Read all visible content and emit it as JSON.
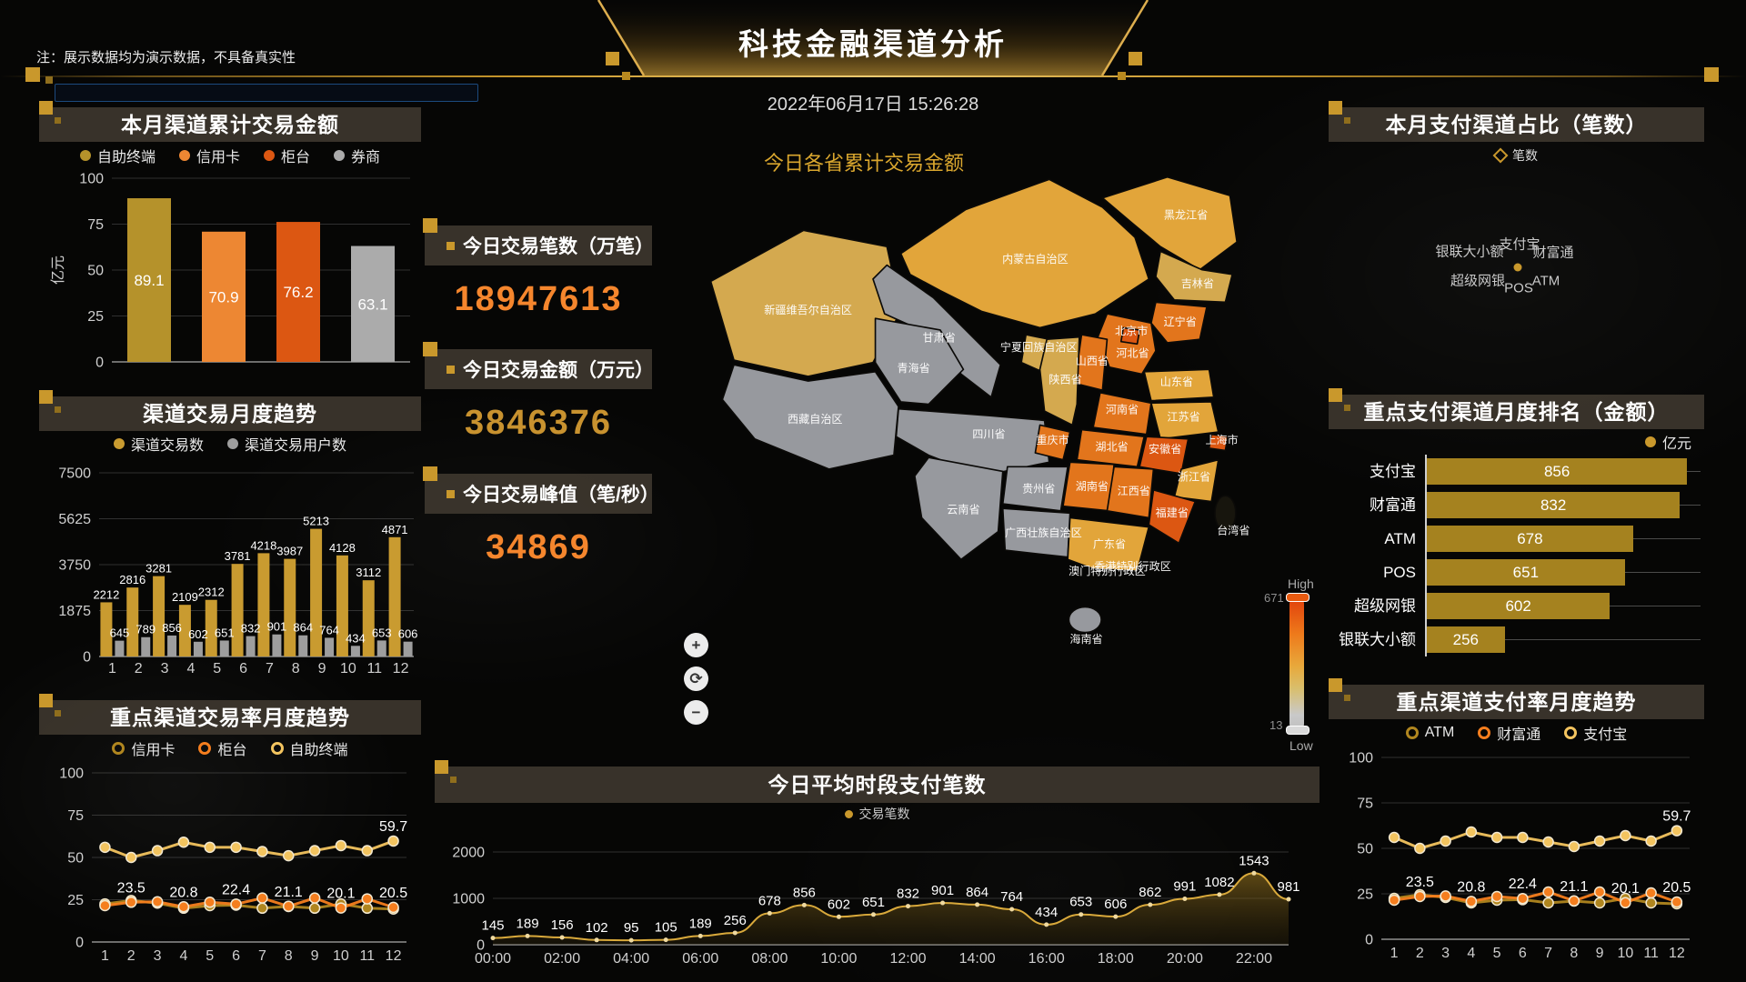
{
  "meta": {
    "title": "科技金融渠道分析",
    "datetime": "2022年06月17日 15:26:28",
    "note": "注：展示数据均为演示数据，不具备真实性",
    "search_placeholder": ""
  },
  "panels": {
    "lp1": {
      "title": "本月渠道累计交易金额",
      "legend": [
        {
          "label": "自助终端",
          "color": "#B5922B",
          "marker": "dot"
        },
        {
          "label": "信用卡",
          "color": "#ED8733",
          "marker": "dot"
        },
        {
          "label": "柜台",
          "color": "#DC5712",
          "marker": "dot"
        },
        {
          "label": "券商",
          "color": "#ABABAB",
          "marker": "dot"
        }
      ]
    },
    "lp2": {
      "title": "渠道交易月度趋势",
      "legend": [
        {
          "label": "渠道交易数",
          "color": "#C99B30",
          "marker": "dot"
        },
        {
          "label": "渠道交易用户数",
          "color": "#9E9E9E",
          "marker": "dot"
        }
      ]
    },
    "lp3": {
      "title": "重点渠道交易率月度趋势",
      "legend": [
        {
          "label": "信用卡",
          "color": "#B0861F",
          "marker": "ring"
        },
        {
          "label": "柜台",
          "color": "#F57E1E",
          "marker": "ring"
        },
        {
          "label": "自助终端",
          "color": "#F3C45F",
          "marker": "ring"
        }
      ]
    },
    "map": {
      "title": "今日各省累计交易金额",
      "controls": {
        "zoom_in": "+",
        "refresh": "⟳",
        "zoom_out": "−"
      }
    },
    "stats": [
      {
        "label": "今日交易笔数（万笔）",
        "value": "18947613",
        "color": "#F5862D"
      },
      {
        "label": "今日交易金额（万元）",
        "value": "3846376",
        "color": "#C8922F"
      },
      {
        "label": "今日交易峰值（笔/秒）",
        "value": "34869",
        "color": "#F5862D"
      }
    ],
    "bottom": {
      "title": "今日平均时段支付笔数",
      "legend": [
        {
          "label": "交易笔数",
          "color": "#C9982C",
          "marker": "dot"
        }
      ]
    },
    "rp1": {
      "title": "本月支付渠道占比（笔数）",
      "legend": [
        {
          "label": "笔数",
          "color": "#C9982C",
          "marker": "diamond"
        }
      ]
    },
    "rp2": {
      "title": "重点支付渠道月度排名（金额）",
      "legend": [
        {
          "label": "亿元",
          "color": "#C9982C",
          "marker": "dot"
        }
      ]
    },
    "rp3": {
      "title": "重点渠道支付率月度趋势",
      "legend": [
        {
          "label": "ATM",
          "color": "#B0861F",
          "marker": "ring"
        },
        {
          "label": "财富通",
          "color": "#F57E1E",
          "marker": "ring"
        },
        {
          "label": "支付宝",
          "color": "#F3C45F",
          "marker": "ring"
        }
      ]
    }
  },
  "chart_data": [
    {
      "id": "month-channel-amount",
      "type": "bar",
      "title": "本月渠道累计交易金额",
      "ylabel": "亿元",
      "ylim": [
        0,
        100
      ],
      "yticks": [
        0,
        25,
        50,
        75,
        100
      ],
      "categories": [
        "自助终端",
        "信用卡",
        "柜台",
        "券商"
      ],
      "values": [
        89.1,
        70.9,
        76.2,
        63.1
      ],
      "colors": [
        "#B5922B",
        "#ED8733",
        "#DC5712",
        "#ABABAB"
      ]
    },
    {
      "id": "channel-monthly-trend",
      "type": "bar",
      "title": "渠道交易月度趋势",
      "ylim": [
        0,
        7500
      ],
      "yticks": [
        0,
        1875,
        3750,
        5625,
        7500
      ],
      "categories": [
        "1",
        "2",
        "3",
        "4",
        "5",
        "6",
        "7",
        "8",
        "9",
        "10",
        "11",
        "12"
      ],
      "series": [
        {
          "name": "渠道交易数",
          "color": "#C99B30",
          "values": [
            2212,
            2816,
            3281,
            2109,
            2312,
            3781,
            4218,
            3987,
            5213,
            4128,
            3112,
            4871
          ]
        },
        {
          "name": "渠道交易用户数",
          "color": "#9E9E9E",
          "values": [
            645,
            789,
            856,
            602,
            651,
            832,
            901,
            864,
            764,
            434,
            653,
            606
          ]
        }
      ]
    },
    {
      "id": "key-channel-rate-trend",
      "type": "line",
      "title": "重点渠道交易率月度趋势",
      "ylim": [
        0,
        100
      ],
      "yticks": [
        0,
        25,
        50,
        75,
        100
      ],
      "categories": [
        "1",
        "2",
        "3",
        "4",
        "5",
        "6",
        "7",
        "8",
        "9",
        "10",
        "11",
        "12"
      ],
      "series": [
        {
          "name": "信用卡",
          "color": "#B0861F",
          "values": [
            22.5,
            24.5,
            23,
            20,
            21.5,
            21.8,
            20,
            21,
            20,
            22.5,
            20,
            19.5
          ],
          "point_labels": {}
        },
        {
          "name": "柜台",
          "color": "#F57E1E",
          "values": [
            21.5,
            23.5,
            23.8,
            20.8,
            23.5,
            22.4,
            26,
            21.1,
            26,
            20.1,
            25.5,
            20.5
          ],
          "point_labels": {
            "1": "23.5",
            "3": "20.8",
            "5": "22.4",
            "7": "21.1",
            "9": "20.1",
            "11": "20.5"
          }
        },
        {
          "name": "自助终端",
          "color": "#F3C45F",
          "values": [
            56,
            50,
            54,
            59,
            56,
            56,
            53.5,
            51,
            54,
            57,
            54,
            59.7
          ],
          "point_labels": {
            "11": "59.7"
          }
        }
      ]
    },
    {
      "id": "province-map",
      "type": "heatmap",
      "title": "今日各省累计交易金额",
      "range": {
        "max_label": "High",
        "max": "671",
        "min": "13",
        "min_label": "Low"
      },
      "level_colors": {
        "high": "#DC5712",
        "mid-high": "#E2751C",
        "mid": "#E2A53A",
        "tan": "#D4A94F",
        "low": "#97999E",
        "none": "#17150D"
      },
      "provinces": [
        {
          "name": "新疆维吾尔自治区",
          "level": "tan",
          "x": 92,
          "y": 128
        },
        {
          "name": "西藏自治区",
          "level": "low",
          "x": 98,
          "y": 222
        },
        {
          "name": "青海省",
          "level": "low",
          "x": 183,
          "y": 178
        },
        {
          "name": "甘肃省",
          "level": "low",
          "x": 205,
          "y": 152
        },
        {
          "name": "内蒙古自治区",
          "level": "mid",
          "x": 288,
          "y": 84
        },
        {
          "name": "黑龙江省",
          "level": "mid",
          "x": 418,
          "y": 46
        },
        {
          "name": "吉林省",
          "level": "tan",
          "x": 428,
          "y": 105
        },
        {
          "name": "辽宁省",
          "level": "mid-high",
          "x": 413,
          "y": 138
        },
        {
          "name": "北京市",
          "level": "high",
          "x": 371,
          "y": 146
        },
        {
          "name": "河北省",
          "level": "mid-high",
          "x": 372,
          "y": 165
        },
        {
          "name": "山西省",
          "level": "mid-high",
          "x": 337,
          "y": 172
        },
        {
          "name": "山东省",
          "level": "mid",
          "x": 410,
          "y": 190
        },
        {
          "name": "河南省",
          "level": "mid-high",
          "x": 363,
          "y": 214
        },
        {
          "name": "陕西省",
          "level": "tan",
          "x": 314,
          "y": 188
        },
        {
          "name": "宁夏回族自治区",
          "level": "tan",
          "x": 291,
          "y": 160
        },
        {
          "name": "江苏省",
          "level": "mid",
          "x": 416,
          "y": 220
        },
        {
          "name": "上海市",
          "level": "high",
          "x": 449,
          "y": 240
        },
        {
          "name": "安徽省",
          "level": "high",
          "x": 400,
          "y": 248
        },
        {
          "name": "湖北省",
          "level": "mid-high",
          "x": 354,
          "y": 246
        },
        {
          "name": "重庆市",
          "level": "mid-high",
          "x": 303,
          "y": 240
        },
        {
          "name": "四川省",
          "level": "low",
          "x": 248,
          "y": 235
        },
        {
          "name": "浙江省",
          "level": "mid",
          "x": 425,
          "y": 272
        },
        {
          "name": "江西省",
          "level": "mid-high",
          "x": 373,
          "y": 284
        },
        {
          "name": "湖南省",
          "level": "mid-high",
          "x": 337,
          "y": 280
        },
        {
          "name": "贵州省",
          "level": "low",
          "x": 291,
          "y": 282
        },
        {
          "name": "云南省",
          "level": "low",
          "x": 226,
          "y": 300
        },
        {
          "name": "广西壮族自治区",
          "level": "low",
          "x": 295,
          "y": 320
        },
        {
          "name": "广东省",
          "level": "mid",
          "x": 352,
          "y": 330
        },
        {
          "name": "福建省",
          "level": "high",
          "x": 406,
          "y": 303
        },
        {
          "name": "香港特别行政区",
          "level": null,
          "x": 372,
          "y": 349
        },
        {
          "name": "澳门特别行政区",
          "level": null,
          "x": 350,
          "y": 353
        },
        {
          "name": "海南省",
          "level": "low",
          "x": 332,
          "y": 412
        },
        {
          "name": "台湾省",
          "level": "none",
          "x": 459,
          "y": 318
        }
      ]
    },
    {
      "id": "hourly-payments",
      "type": "area",
      "title": "今日平均时段支付笔数",
      "series_name": "交易笔数",
      "ylim": [
        0,
        2000
      ],
      "yticks": [
        0,
        1000,
        2000
      ],
      "x_label_every": 2,
      "x": [
        "00:00",
        "01:00",
        "02:00",
        "03:00",
        "04:00",
        "05:00",
        "06:00",
        "07:00",
        "08:00",
        "09:00",
        "10:00",
        "11:00",
        "12:00",
        "13:00",
        "14:00",
        "15:00",
        "16:00",
        "17:00",
        "18:00",
        "19:00",
        "20:00",
        "21:00",
        "22:00",
        "23:00"
      ],
      "values": [
        145,
        189,
        156,
        102,
        95,
        105,
        189,
        256,
        678,
        856,
        602,
        651,
        832,
        901,
        864,
        764,
        434,
        653,
        606,
        862,
        991,
        1082,
        1543,
        981
      ],
      "line_color": "#D9A93B"
    },
    {
      "id": "pay-channel-share",
      "type": "radar",
      "title": "本月支付渠道占比（笔数）",
      "series_name": "笔数",
      "indicators": [
        "支付宝",
        "财富通",
        "ATM",
        "POS",
        "超级网银",
        "银联大小额"
      ]
    },
    {
      "id": "pay-channel-rank",
      "type": "hbar",
      "title": "重点支付渠道月度排名（金额）",
      "unit": "亿元",
      "xmax": 900,
      "categories": [
        "支付宝",
        "财富通",
        "ATM",
        "POS",
        "超级网银",
        "银联大小额"
      ],
      "values": [
        856,
        832,
        678,
        651,
        602,
        256
      ],
      "color": "#A5821F"
    },
    {
      "id": "key-pay-rate-trend",
      "type": "line",
      "title": "重点渠道支付率月度趋势",
      "ylim": [
        0,
        100
      ],
      "yticks": [
        0,
        25,
        50,
        75,
        100
      ],
      "categories": [
        "1",
        "2",
        "3",
        "4",
        "5",
        "6",
        "7",
        "8",
        "9",
        "10",
        "11",
        "12"
      ],
      "series": [
        {
          "name": "ATM",
          "color": "#B0861F",
          "values": [
            22.5,
            24.5,
            23,
            20,
            21.5,
            21.8,
            20,
            21,
            20,
            22.5,
            20,
            19.5
          ],
          "point_labels": {}
        },
        {
          "name": "财富通",
          "color": "#F57E1E",
          "values": [
            21.5,
            23.5,
            23.8,
            20.8,
            23.5,
            22.4,
            26,
            21.1,
            26,
            20.1,
            25.5,
            20.5
          ],
          "point_labels": {
            "1": "23.5",
            "3": "20.8",
            "5": "22.4",
            "7": "21.1",
            "9": "20.1",
            "11": "20.5"
          }
        },
        {
          "name": "支付宝",
          "color": "#F3C45F",
          "values": [
            56,
            50,
            54,
            59,
            56,
            56,
            53.5,
            51,
            54,
            57,
            54,
            59.7
          ],
          "point_labels": {
            "11": "59.7"
          }
        }
      ]
    }
  ]
}
